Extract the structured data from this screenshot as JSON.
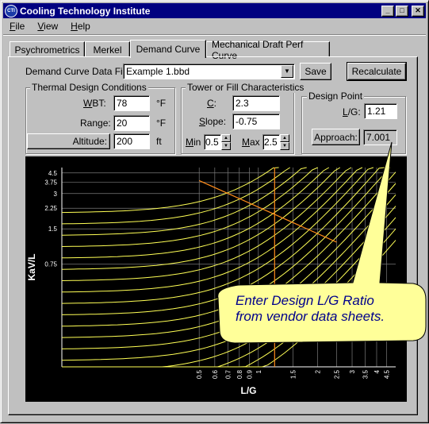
{
  "window": {
    "title": "Cooling Technology Institute",
    "app_icon": "CTI"
  },
  "menu": [
    {
      "key": "F",
      "rest": "ile"
    },
    {
      "key": "V",
      "rest": "iew"
    },
    {
      "key": "H",
      "rest": "elp"
    }
  ],
  "tabs": [
    "Psychrometrics",
    "Merkel",
    "Demand Curve",
    "Mechanical Draft Perf Curve"
  ],
  "active_tab": "Demand Curve",
  "data_file": {
    "label": "Demand Curve Data File:",
    "value": "Example 1.bbd"
  },
  "buttons": {
    "save": "Save",
    "recalculate": "Recalculate",
    "altitude": "Altitude:",
    "approach": "Approach:"
  },
  "thermal": {
    "title": "Thermal Design Conditions",
    "wbt": {
      "label_key": "W",
      "label_rest": "BT:",
      "value": "78",
      "unit": "°F"
    },
    "range": {
      "label": "Range:",
      "value": "20",
      "unit": "°F"
    },
    "altitude": {
      "value": "200",
      "unit": "ft"
    }
  },
  "tower": {
    "title_key": "T",
    "title_rest": "ower or Fill Characteristics",
    "c": {
      "label_key": "C",
      "label_rest": ":",
      "value": "2.3"
    },
    "slope": {
      "label_key": "S",
      "label_rest": "lope:",
      "value": "-0.75"
    },
    "min": {
      "label_key": "M",
      "label_rest": "in",
      "value": "0.5"
    },
    "max": {
      "label_key": "M",
      "label_rest": "ax",
      "value": "2.5"
    }
  },
  "design_point": {
    "title": "Design Point",
    "lg_label_key": "L",
    "lg_label_rest": "/G:",
    "lg_value": "1.21",
    "approach_value": "7.001"
  },
  "callout": {
    "line1": "Enter Design L/G Ratio",
    "line2": "from vendor data sheets."
  },
  "colors": {
    "curve": "#ffff55",
    "tower_line": "#ff8c1a",
    "grid": "#7a7a7a",
    "plot_bg": "#000000",
    "callout_bg": "#ffff99"
  },
  "chart_data": {
    "type": "line",
    "scale": "log-log",
    "xlabel": "L/G",
    "ylabel": "KaV/L",
    "xlim": [
      0.1,
      5
    ],
    "ylim": [
      0.1,
      5
    ],
    "x_ticks": [
      {
        "v": 0.5,
        "label": "0.5"
      },
      {
        "v": 0.6,
        "label": "0.6"
      },
      {
        "v": 0.7,
        "label": "0.7"
      },
      {
        "v": 0.8,
        "label": "0.8"
      },
      {
        "v": 0.9,
        "label": "0.9"
      },
      {
        "v": 1,
        "label": "1"
      },
      {
        "v": 1.5,
        "label": "1.5"
      },
      {
        "v": 2,
        "label": "2"
      },
      {
        "v": 2.5,
        "label": "2.5"
      },
      {
        "v": 3,
        "label": "3"
      },
      {
        "v": 3.5,
        "label": "3.5"
      },
      {
        "v": 4,
        "label": "4"
      },
      {
        "v": 4.5,
        "label": "4.5"
      }
    ],
    "y_ticks": [
      {
        "v": 4.5,
        "label": "4.5"
      },
      {
        "v": 3.75,
        "label": "3.75"
      },
      {
        "v": 3,
        "label": "3"
      },
      {
        "v": 2.25,
        "label": "2.25"
      },
      {
        "v": 1.5,
        "label": "1.5"
      },
      {
        "v": 0.75,
        "label": "0.75"
      }
    ],
    "design_lg": 1.21,
    "tower_characteristic": {
      "C": 2.3,
      "slope": -0.75,
      "x_range": [
        0.5,
        2.5
      ]
    },
    "demand_curves": {
      "count": 18,
      "top_curve_start": 2.05,
      "step_ratio": 0.8,
      "x_start": 0.1,
      "x_end": 5
    }
  }
}
